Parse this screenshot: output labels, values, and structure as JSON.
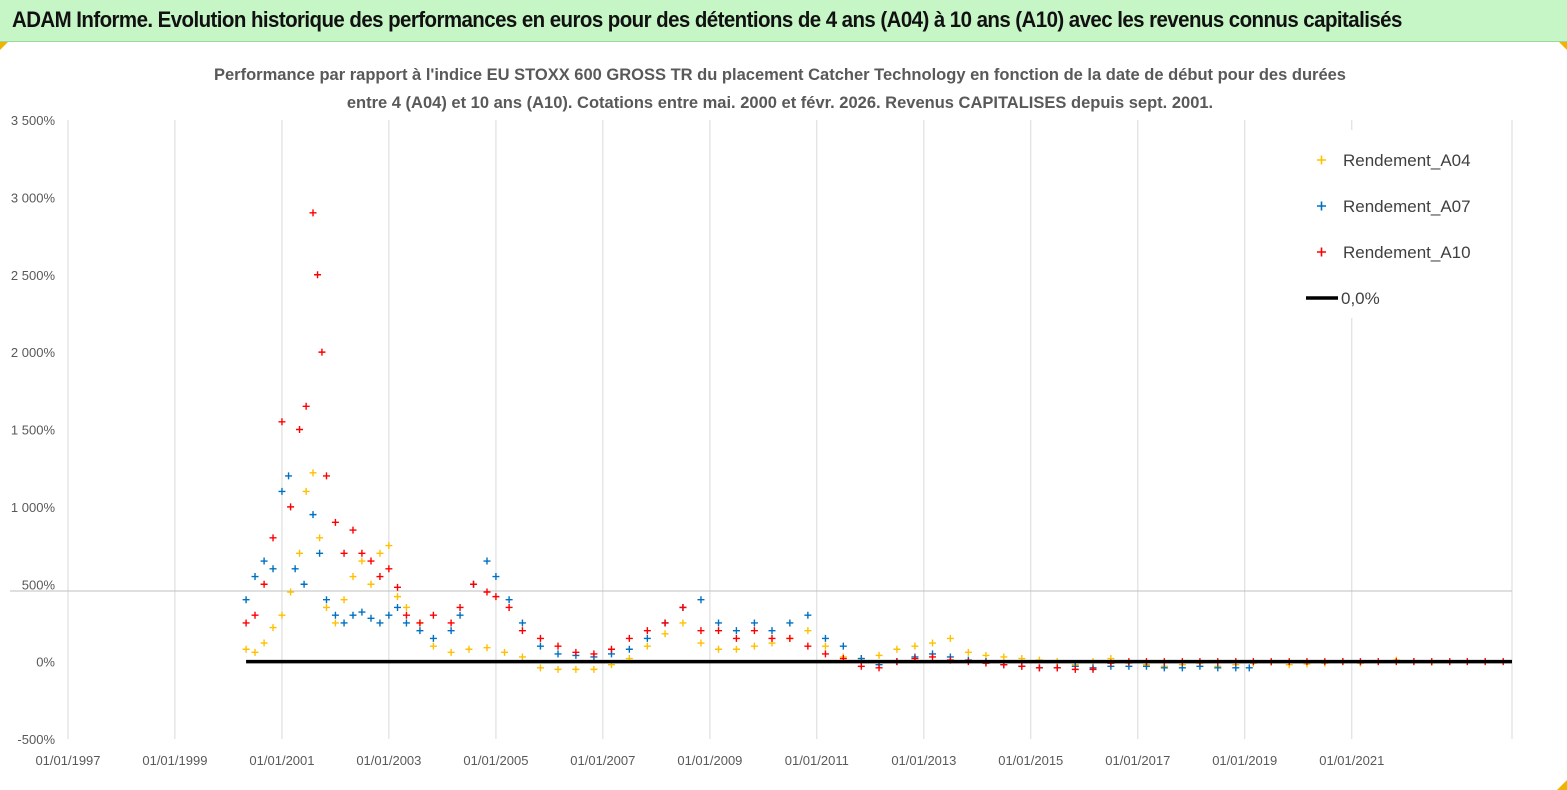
{
  "banner": {
    "title": "ADAM Informe. Evolution historique des performances en euros pour des détentions de 4 ans (A04) à 10 ans (A10) avec les revenus connus capitalisés"
  },
  "colors": {
    "banner_bg": "#c6f5c6",
    "a04": "#ffc000",
    "a07": "#0070c0",
    "a10": "#ff0000",
    "zero": "#000000",
    "grid": "#d9d9d9",
    "corner": "#f0b400"
  },
  "chart_data": {
    "type": "scatter",
    "title_lines": [
      "Performance par rapport à l'indice EU STOXX 600 GROSS TR  du placement Catcher Technology   en fonction de la date de début pour des durées",
      "entre 4 (A04) et 10 ans (A10).  Cotations entre mai. 2000 et févr. 2026. Revenus CAPITALISES depuis sept. 2001."
    ],
    "xlabel": "",
    "ylabel": "",
    "x_range": [
      "1997-01-01",
      "2023-12-31"
    ],
    "x_ticks": [
      "01/01/1997",
      "01/01/1999",
      "01/01/2001",
      "01/01/2003",
      "01/01/2005",
      "01/01/2007",
      "01/01/2009",
      "01/01/2011",
      "01/01/2013",
      "01/01/2015",
      "01/01/2017",
      "01/01/2019",
      "01/01/2021"
    ],
    "x_tick_dates": [
      "1997-01-01",
      "1999-01-01",
      "2001-01-01",
      "2003-01-01",
      "2005-01-01",
      "2007-01-01",
      "2009-01-01",
      "2011-01-01",
      "2013-01-01",
      "2015-01-01",
      "2017-01-01",
      "2019-01-01",
      "2021-01-01"
    ],
    "y_range": [
      -500,
      3500
    ],
    "y_ticks": [
      -500,
      0,
      500,
      1000,
      1500,
      2000,
      2500,
      3000,
      3500
    ],
    "y_tick_labels": [
      "-500%",
      "0%",
      "500%",
      "1 000%",
      "1 500%",
      "2 000%",
      "2 500%",
      "3 000%",
      "3 500%"
    ],
    "grid": "vertical",
    "legend_position": "top-right",
    "legend": [
      {
        "label": "Rendement_A04",
        "key": "a04",
        "marker": "plus"
      },
      {
        "label": "Rendement_A07",
        "key": "a07",
        "marker": "plus"
      },
      {
        "label": "Rendement_A10",
        "key": "a10",
        "marker": "plus"
      },
      {
        "label": "0,0%",
        "key": "zero",
        "marker": "line"
      }
    ],
    "series": [
      {
        "name": "Rendement_A04",
        "key": "a04",
        "x": [
          "2000-05-01",
          "2000-07-01",
          "2000-09-01",
          "2000-11-01",
          "2001-01-01",
          "2001-03-01",
          "2001-05-01",
          "2001-06-15",
          "2001-08-01",
          "2001-09-15",
          "2001-11-01",
          "2002-01-01",
          "2002-03-01",
          "2002-05-01",
          "2002-07-01",
          "2002-09-01",
          "2002-11-01",
          "2003-01-01",
          "2003-03-01",
          "2003-05-01",
          "2003-08-01",
          "2003-11-01",
          "2004-03-01",
          "2004-07-01",
          "2004-11-01",
          "2005-03-01",
          "2005-07-01",
          "2005-11-01",
          "2006-03-01",
          "2006-07-01",
          "2006-11-01",
          "2007-03-01",
          "2007-07-01",
          "2007-11-01",
          "2008-03-01",
          "2008-07-01",
          "2008-11-01",
          "2009-03-01",
          "2009-07-01",
          "2009-11-01",
          "2010-03-01",
          "2010-07-01",
          "2010-11-01",
          "2011-03-01",
          "2011-07-01",
          "2011-11-01",
          "2012-03-01",
          "2012-07-01",
          "2012-11-01",
          "2013-03-01",
          "2013-07-01",
          "2013-11-01",
          "2014-03-01",
          "2014-07-01",
          "2014-11-01",
          "2015-03-01",
          "2015-07-01",
          "2015-11-01",
          "2016-03-01",
          "2016-07-01",
          "2016-11-01",
          "2017-03-01",
          "2017-07-01",
          "2017-11-01",
          "2018-03-01",
          "2018-07-01",
          "2018-11-01",
          "2019-03-01",
          "2019-07-01",
          "2019-11-01",
          "2020-03-01",
          "2020-07-01",
          "2020-11-01",
          "2021-03-01",
          "2021-07-01",
          "2021-11-01",
          "2022-03-01",
          "2022-07-01",
          "2022-11-01",
          "2023-03-01",
          "2023-07-01",
          "2023-11-01"
        ],
        "values": [
          80,
          60,
          120,
          220,
          300,
          450,
          700,
          1100,
          1220,
          800,
          350,
          250,
          400,
          550,
          650,
          500,
          700,
          750,
          420,
          350,
          250,
          100,
          60,
          80,
          90,
          60,
          30,
          -40,
          -50,
          -50,
          -50,
          -20,
          20,
          100,
          180,
          250,
          120,
          80,
          80,
          100,
          120,
          150,
          200,
          100,
          30,
          20,
          40,
          80,
          100,
          120,
          150,
          60,
          40,
          30,
          20,
          10,
          0,
          -20,
          0,
          20,
          -10,
          -20,
          -30,
          -20,
          -10,
          -30,
          -20,
          -10,
          -5,
          -20,
          -15,
          -10,
          0,
          -10,
          0,
          10,
          0,
          -5,
          0,
          0,
          0,
          0
        ]
      },
      {
        "name": "Rendement_A07",
        "key": "a07",
        "x": [
          "2000-05-01",
          "2000-07-01",
          "2000-09-01",
          "2000-11-01",
          "2001-01-01",
          "2001-02-15",
          "2001-04-01",
          "2001-06-01",
          "2001-08-01",
          "2001-09-15",
          "2001-11-01",
          "2002-01-01",
          "2002-03-01",
          "2002-05-01",
          "2002-07-01",
          "2002-09-01",
          "2002-11-01",
          "2003-01-01",
          "2003-03-01",
          "2003-05-01",
          "2003-08-01",
          "2003-11-01",
          "2004-03-01",
          "2004-05-01",
          "2004-08-01",
          "2004-11-01",
          "2005-01-01",
          "2005-04-01",
          "2005-07-01",
          "2005-11-01",
          "2006-03-01",
          "2006-07-01",
          "2006-11-01",
          "2007-03-01",
          "2007-07-01",
          "2007-11-01",
          "2008-03-01",
          "2008-07-01",
          "2008-11-01",
          "2009-03-01",
          "2009-07-01",
          "2009-11-01",
          "2010-03-01",
          "2010-07-01",
          "2010-11-01",
          "2011-03-01",
          "2011-07-01",
          "2011-11-01",
          "2012-03-01",
          "2012-07-01",
          "2012-11-01",
          "2013-03-01",
          "2013-07-01",
          "2013-11-01",
          "2014-03-01",
          "2014-07-01",
          "2014-11-01",
          "2015-03-01",
          "2015-07-01",
          "2015-11-01",
          "2016-03-01",
          "2016-07-01",
          "2016-11-01",
          "2017-03-01",
          "2017-07-01",
          "2017-11-01",
          "2018-03-01",
          "2018-07-01",
          "2018-11-01",
          "2019-02-01"
        ],
        "values": [
          400,
          550,
          650,
          600,
          1100,
          1200,
          600,
          500,
          950,
          700,
          400,
          300,
          250,
          300,
          320,
          280,
          250,
          300,
          350,
          250,
          200,
          150,
          200,
          300,
          500,
          650,
          550,
          400,
          250,
          100,
          50,
          40,
          30,
          50,
          80,
          150,
          250,
          350,
          400,
          250,
          200,
          250,
          200,
          250,
          300,
          150,
          100,
          20,
          -20,
          0,
          30,
          50,
          30,
          10,
          0,
          -20,
          -30,
          -40,
          -40,
          -30,
          -40,
          -30,
          -30,
          -30,
          -40,
          -40,
          -30,
          -40,
          -40,
          -40
        ]
      },
      {
        "name": "Rendement_A10",
        "key": "a10",
        "x": [
          "2000-05-01",
          "2000-07-01",
          "2000-09-01",
          "2000-11-01",
          "2001-01-01",
          "2001-03-01",
          "2001-05-01",
          "2001-06-15",
          "2001-08-01",
          "2001-09-01",
          "2001-10-01",
          "2001-11-01",
          "2002-01-01",
          "2002-03-01",
          "2002-05-01",
          "2002-07-01",
          "2002-09-01",
          "2002-11-01",
          "2003-01-01",
          "2003-03-01",
          "2003-05-01",
          "2003-08-01",
          "2003-11-01",
          "2004-03-01",
          "2004-05-01",
          "2004-08-01",
          "2004-11-01",
          "2005-01-01",
          "2005-04-01",
          "2005-07-01",
          "2005-11-01",
          "2006-03-01",
          "2006-07-01",
          "2006-11-01",
          "2007-03-01",
          "2007-07-01",
          "2007-11-01",
          "2008-03-01",
          "2008-07-01",
          "2008-11-01",
          "2009-03-01",
          "2009-07-01",
          "2009-11-01",
          "2010-03-01",
          "2010-07-01",
          "2010-11-01",
          "2011-03-01",
          "2011-07-01",
          "2011-11-01",
          "2012-03-01",
          "2012-07-01",
          "2012-11-01",
          "2013-03-01",
          "2013-07-01",
          "2013-11-01",
          "2014-03-01",
          "2014-07-01",
          "2014-11-01",
          "2015-03-01",
          "2015-07-01",
          "2015-11-01",
          "2016-03-01",
          "2016-07-01",
          "2016-11-01",
          "2017-03-01",
          "2017-07-01",
          "2017-11-01",
          "2018-03-01",
          "2018-07-01",
          "2018-11-01",
          "2019-03-01",
          "2019-07-01",
          "2019-11-01",
          "2020-03-01",
          "2020-07-01",
          "2020-11-01",
          "2021-03-01",
          "2021-07-01",
          "2021-11-01",
          "2022-03-01",
          "2022-07-01",
          "2022-11-01",
          "2023-03-01",
          "2023-07-01",
          "2023-11-01"
        ],
        "values": [
          250,
          300,
          500,
          800,
          1550,
          1000,
          1500,
          1650,
          2900,
          2500,
          2000,
          1200,
          900,
          700,
          850,
          700,
          650,
          550,
          600,
          480,
          300,
          250,
          300,
          250,
          350,
          500,
          450,
          420,
          350,
          200,
          150,
          100,
          60,
          50,
          80,
          150,
          200,
          250,
          350,
          200,
          200,
          150,
          200,
          150,
          150,
          100,
          50,
          20,
          -30,
          -40,
          0,
          20,
          30,
          10,
          0,
          -10,
          -20,
          -30,
          -40,
          -40,
          -50,
          -50,
          -10,
          0,
          0,
          0,
          0,
          0,
          0,
          0,
          0,
          0,
          0,
          0,
          0,
          0,
          0,
          0,
          0,
          0,
          0,
          0,
          0,
          0,
          0
        ]
      }
    ]
  }
}
